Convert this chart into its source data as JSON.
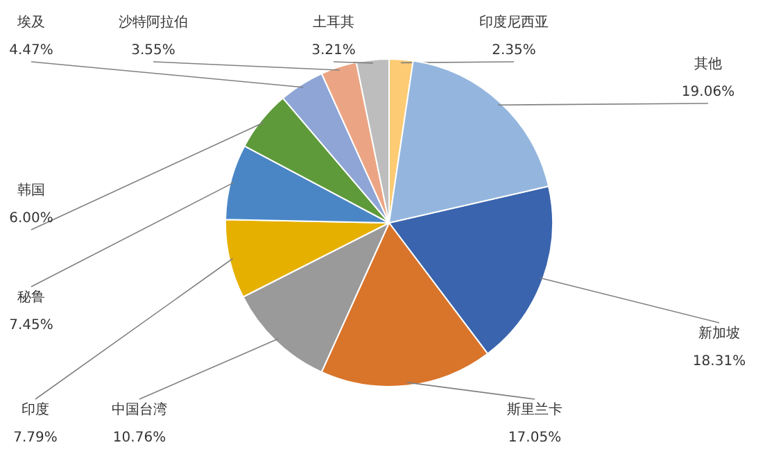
{
  "chart_data": {
    "type": "pie",
    "categories": [
      "新加坡",
      "斯里兰卡",
      "中国台湾",
      "印度",
      "秘鲁",
      "韩国",
      "埃及",
      "沙特阿拉伯",
      "土耳其",
      "印度尼西亚",
      "其他"
    ],
    "values": [
      18.31,
      17.05,
      10.76,
      7.79,
      7.45,
      6.0,
      4.47,
      3.55,
      3.21,
      2.35,
      19.06
    ],
    "value_labels": [
      "18.31%",
      "17.05%",
      "10.76%",
      "7.79%",
      "7.45%",
      "6.00%",
      "4.47%",
      "3.55%",
      "3.21%",
      "2.35%",
      "19.06%"
    ],
    "colors": [
      "#3a64ad",
      "#d9742b",
      "#9a9a9a",
      "#e6b000",
      "#4a86c5",
      "#5e9a3a",
      "#8ea5d6",
      "#eca584",
      "#bdbdbd",
      "#fccb74",
      "#94b6de"
    ]
  }
}
